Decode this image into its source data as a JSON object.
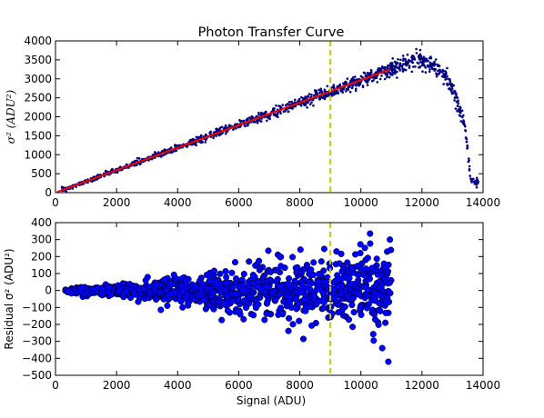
{
  "chart_data": [
    {
      "type": "scatter",
      "title": "Photon Transfer Curve",
      "xlabel": "",
      "ylabel": "σ² (ADU²)",
      "xlim": [
        0,
        14000
      ],
      "ylim": [
        0,
        4000
      ],
      "xticks": [
        "0",
        "2000",
        "4000",
        "6000",
        "8000",
        "10000",
        "12000",
        "14000"
      ],
      "yticks": [
        "0",
        "500",
        "1000",
        "1500",
        "2000",
        "2500",
        "3000",
        "3500",
        "4000"
      ],
      "marker_color": "#000080",
      "fit_line": {
        "color": "#ff0000",
        "x": [
          50,
          10950
        ],
        "y": [
          15,
          3250
        ]
      },
      "vline": {
        "x": 9000,
        "color": "#c8c800",
        "style": "dashed"
      },
      "series": [
        {
          "values_desc": "",
          "x": [
            300,
            800,
            1500,
            2200,
            3000,
            3800,
            4500,
            5200,
            6000,
            6800,
            7500,
            8200,
            9000,
            9800,
            10500,
            11000,
            11500,
            11900,
            12200,
            12500,
            12800,
            13000,
            13200,
            13400,
            13500,
            13550,
            13600,
            13700,
            13800
          ],
          "y": [
            90,
            230,
            440,
            650,
            890,
            1120,
            1330,
            1540,
            1780,
            2010,
            2220,
            2430,
            2660,
            2900,
            3100,
            3270,
            3400,
            3500,
            3450,
            3300,
            3000,
            2700,
            2300,
            1800,
            1100,
            700,
            350,
            280,
            260
          ]
        }
      ]
    },
    {
      "type": "scatter",
      "title": "",
      "xlabel": "Signal (ADU)",
      "ylabel": "Residual σ² (ADU²)",
      "xlim": [
        0,
        14000
      ],
      "ylim": [
        -500,
        400
      ],
      "xticks": [
        "0",
        "2000",
        "4000",
        "6000",
        "8000",
        "10000",
        "12000",
        "14000"
      ],
      "yticks": [
        "−500",
        "−400",
        "−300",
        "−200",
        "−100",
        "0",
        "100",
        "200",
        "300",
        "400"
      ],
      "marker_color": "#0000ff",
      "vline": {
        "x": 9000,
        "color": "#c8c800",
        "style": "dashed"
      },
      "residual_spread": {
        "x": [
          300,
          2000,
          4000,
          6000,
          8000,
          10000,
          11000
        ],
        "half_width": [
          15,
          35,
          80,
          130,
          170,
          210,
          240
        ]
      },
      "highlights": {
        "x": [
          8800,
          9200,
          10300,
          10700,
          10900,
          10950
        ],
        "y": [
          245,
          230,
          335,
          -340,
          -420,
          300
        ]
      }
    }
  ]
}
